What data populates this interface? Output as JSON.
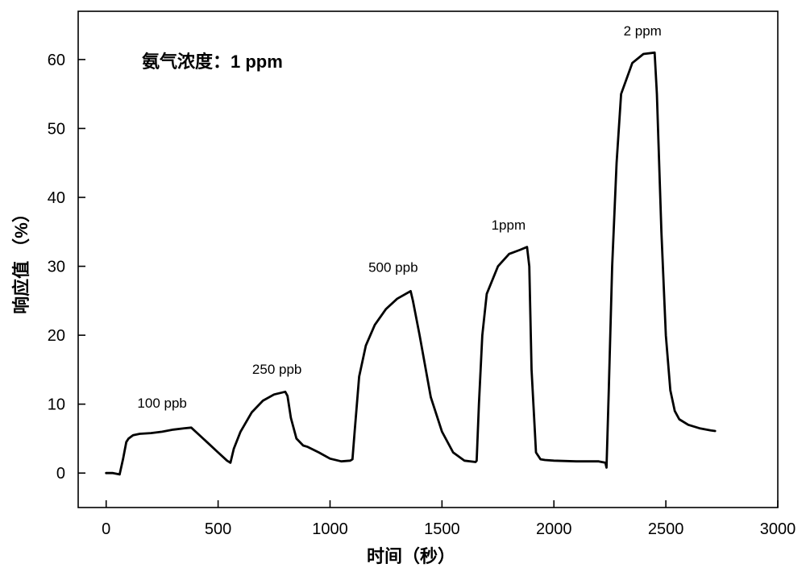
{
  "chart_data": {
    "type": "line",
    "title": "",
    "note": "氨气浓度：1 ppm",
    "xlabel": "时间（秒）",
    "ylabel": "响应值 （%）",
    "xlim": [
      -125,
      3000
    ],
    "ylim": [
      -5,
      67
    ],
    "xticks": [
      0,
      500,
      1000,
      1500,
      2000,
      2500,
      3000
    ],
    "yticks": [
      0,
      10,
      20,
      30,
      40,
      50,
      60
    ],
    "grid": false,
    "legend": "none",
    "line_color": "#000000",
    "series": [
      {
        "x": [
          0,
          30,
          60,
          75,
          90,
          100,
          120,
          150,
          200,
          250,
          300,
          350,
          380,
          400,
          450,
          500,
          540,
          555,
          570,
          600,
          650,
          700,
          750,
          800,
          810,
          825,
          850,
          880,
          900,
          950,
          1000,
          1050,
          1090,
          1100,
          1110,
          1130,
          1160,
          1200,
          1250,
          1300,
          1360,
          1370,
          1400,
          1450,
          1500,
          1550,
          1600,
          1650,
          1655,
          1665,
          1680,
          1700,
          1750,
          1800,
          1850,
          1880,
          1890,
          1900,
          1920,
          1940,
          1960,
          2000,
          2100,
          2200,
          2230,
          2235,
          2245,
          2260,
          2280,
          2300,
          2350,
          2400,
          2450,
          2460,
          2480,
          2500,
          2520,
          2540,
          2560,
          2600,
          2650,
          2700,
          2720
        ],
        "y": [
          0,
          0,
          -0.2,
          2,
          4.5,
          5,
          5.5,
          5.7,
          5.8,
          6,
          6.3,
          6.5,
          6.6,
          6,
          4.5,
          3,
          1.8,
          1.5,
          3.5,
          6,
          8.8,
          10.5,
          11.4,
          11.8,
          11.2,
          8,
          5,
          4,
          3.8,
          3,
          2.1,
          1.7,
          1.8,
          2,
          6,
          14,
          18.5,
          21.5,
          23.8,
          25.3,
          26.4,
          25,
          20,
          11,
          6,
          3,
          1.8,
          1.6,
          1.8,
          10,
          20,
          26,
          30,
          31.8,
          32.4,
          32.8,
          30,
          15,
          3,
          2,
          1.9,
          1.8,
          1.7,
          1.7,
          1.5,
          0.8,
          12,
          30,
          45,
          55,
          59.5,
          60.8,
          61,
          55,
          35,
          20,
          12,
          9,
          7.8,
          7,
          6.5,
          6.2,
          6.1
        ]
      }
    ],
    "annotations": [
      {
        "text": "100 ppb",
        "x": 250,
        "y": 9.5
      },
      {
        "text": "250 ppb",
        "x": 763,
        "y": 14.4
      },
      {
        "text": "500 ppb",
        "x": 1282,
        "y": 29.2
      },
      {
        "text": "1ppm",
        "x": 1797,
        "y": 35.3
      },
      {
        "text": "2 ppm",
        "x": 2396,
        "y": 63.5
      }
    ]
  }
}
